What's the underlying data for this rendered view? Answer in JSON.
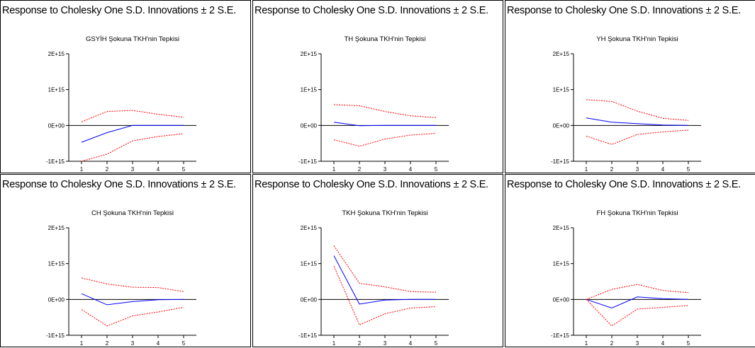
{
  "window_header": "Response to Cholesky One S.D. Innovations ± 2 S.E.",
  "colors": {
    "response": "#0000ff",
    "band": "#ff0000",
    "zero_line": "#000000",
    "axis": "#000000"
  },
  "chart_data": [
    {
      "type": "line",
      "title": "GSYİH Şokuna TKH'nin Tepkisi",
      "x": [
        1,
        2,
        3,
        4,
        5
      ],
      "xticks": [
        "1",
        "2",
        "3",
        "4",
        "5"
      ],
      "yticks": [
        "-1E+15",
        "0E+00",
        "1E+15",
        "2E+15"
      ],
      "ylim": [
        -1000000000000000.0,
        2000000000000000.0
      ],
      "series": [
        {
          "role": "response",
          "values": [
            -470000000000000.0,
            -200000000000000.0,
            0,
            0,
            0
          ]
        },
        {
          "role": "upper",
          "values": [
            100000000000000.0,
            390000000000000.0,
            420000000000000.0,
            310000000000000.0,
            230000000000000.0
          ]
        },
        {
          "role": "lower",
          "values": [
            -1000000000000000.0,
            -800000000000000.0,
            -430000000000000.0,
            -310000000000000.0,
            -230000000000000.0
          ]
        }
      ]
    },
    {
      "type": "line",
      "title": "TH Şokuna TKH'nin Tepkisi",
      "x": [
        1,
        2,
        3,
        4,
        5
      ],
      "xticks": [
        "1",
        "2",
        "3",
        "4",
        "5"
      ],
      "yticks": [
        "-1E+15",
        "0E+00",
        "1E+15",
        "2E+15"
      ],
      "ylim": [
        -1000000000000000.0,
        2000000000000000.0
      ],
      "series": [
        {
          "role": "response",
          "values": [
            90000000000000.0,
            -10000000000000.0,
            0,
            0,
            0
          ]
        },
        {
          "role": "upper",
          "values": [
            580000000000000.0,
            550000000000000.0,
            390000000000000.0,
            270000000000000.0,
            220000000000000.0
          ]
        },
        {
          "role": "lower",
          "values": [
            -400000000000000.0,
            -580000000000000.0,
            -380000000000000.0,
            -270000000000000.0,
            -220000000000000.0
          ]
        }
      ]
    },
    {
      "type": "line",
      "title": "YH Şokuna TKH'nin Tepkisi",
      "x": [
        1,
        2,
        3,
        4,
        5
      ],
      "xticks": [
        "1",
        "2",
        "3",
        "4",
        "5"
      ],
      "yticks": [
        "-1E+15",
        "0E+00",
        "1E+15",
        "2E+15"
      ],
      "ylim": [
        -1000000000000000.0,
        2000000000000000.0
      ],
      "series": [
        {
          "role": "response",
          "values": [
            210000000000000.0,
            90000000000000.0,
            50000000000000.0,
            10000000000000.0,
            0
          ]
        },
        {
          "role": "upper",
          "values": [
            720000000000000.0,
            670000000000000.0,
            400000000000000.0,
            200000000000000.0,
            140000000000000.0
          ]
        },
        {
          "role": "lower",
          "values": [
            -300000000000000.0,
            -530000000000000.0,
            -250000000000000.0,
            -180000000000000.0,
            -130000000000000.0
          ]
        }
      ]
    },
    {
      "type": "line",
      "title": "CH Şokuna TKH'nin Tepkisi",
      "x": [
        1,
        2,
        3,
        4,
        5
      ],
      "xticks": [
        "1",
        "2",
        "3",
        "4",
        "5"
      ],
      "yticks": [
        "-1E+15",
        "0E+00",
        "1E+15",
        "2E+15"
      ],
      "ylim": [
        -1000000000000000.0,
        2000000000000000.0
      ],
      "series": [
        {
          "role": "response",
          "values": [
            160000000000000.0,
            -150000000000000.0,
            -60000000000000.0,
            -10000000000000.0,
            0
          ]
        },
        {
          "role": "upper",
          "values": [
            600000000000000.0,
            430000000000000.0,
            340000000000000.0,
            330000000000000.0,
            220000000000000.0
          ]
        },
        {
          "role": "lower",
          "values": [
            -280000000000000.0,
            -740000000000000.0,
            -460000000000000.0,
            -350000000000000.0,
            -220000000000000.0
          ]
        }
      ]
    },
    {
      "type": "line",
      "title": "TKH Şokuna TKH'nin Tepkisi",
      "x": [
        1,
        2,
        3,
        4,
        5
      ],
      "xticks": [
        "1",
        "2",
        "3",
        "4",
        "5"
      ],
      "yticks": [
        "-1E+15",
        "0E+00",
        "1E+15",
        "2E+15"
      ],
      "ylim": [
        -1000000000000000.0,
        2000000000000000.0
      ],
      "series": [
        {
          "role": "response",
          "values": [
            1220000000000000.0,
            -130000000000000.0,
            -20000000000000.0,
            0,
            0
          ]
        },
        {
          "role": "upper",
          "values": [
            1500000000000000.0,
            450000000000000.0,
            350000000000000.0,
            220000000000000.0,
            200000000000000.0
          ]
        },
        {
          "role": "lower",
          "values": [
            930000000000000.0,
            -710000000000000.0,
            -400000000000000.0,
            -240000000000000.0,
            -200000000000000.0
          ]
        }
      ]
    },
    {
      "type": "line",
      "title": "FH Şokuna TKH'nin Tepkisi",
      "x": [
        1,
        2,
        3,
        4,
        5
      ],
      "xticks": [
        "1",
        "2",
        "3",
        "4",
        "5"
      ],
      "yticks": [
        "-1E+15",
        "0E+00",
        "1E+15",
        "2E+15"
      ],
      "ylim": [
        -1000000000000000.0,
        2000000000000000.0
      ],
      "series": [
        {
          "role": "response",
          "values": [
            0,
            -240000000000000.0,
            70000000000000.0,
            20000000000000.0,
            0
          ]
        },
        {
          "role": "upper",
          "values": [
            0,
            280000000000000.0,
            420000000000000.0,
            250000000000000.0,
            190000000000000.0
          ]
        },
        {
          "role": "lower",
          "values": [
            0,
            -740000000000000.0,
            -270000000000000.0,
            -220000000000000.0,
            -170000000000000.0
          ]
        }
      ]
    }
  ]
}
